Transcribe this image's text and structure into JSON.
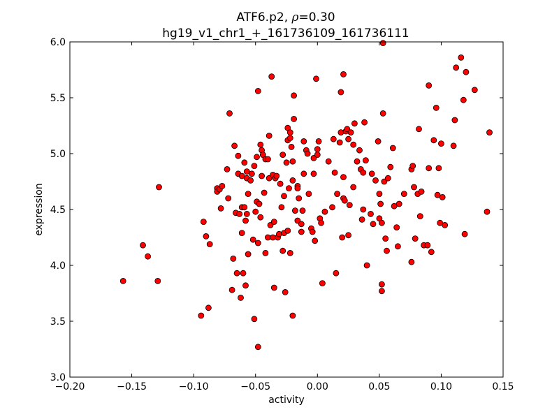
{
  "chart_data": {
    "type": "scatter",
    "title": {
      "line1_gene": "ATF6.p2,",
      "line1_rho_symbol": "ρ",
      "line1_rho_value": "=0.30",
      "line2": "hg19_v1_chr1_+_161736109_161736111"
    },
    "xlabel": "activity",
    "ylabel": "expression",
    "xlim": [
      -0.2,
      0.15
    ],
    "ylim": [
      3.0,
      6.0
    ],
    "xticks": [
      -0.2,
      -0.15,
      -0.1,
      -0.05,
      0.0,
      0.05,
      0.1,
      0.15
    ],
    "xtick_labels": [
      "−0.20",
      "−0.15",
      "−0.10",
      "−0.05",
      "0.00",
      "0.05",
      "0.10",
      "0.15"
    ],
    "yticks": [
      3.0,
      3.5,
      4.0,
      4.5,
      5.0,
      5.5,
      6.0
    ],
    "ytick_labels": [
      "3.0",
      "3.5",
      "4.0",
      "4.5",
      "5.0",
      "5.5",
      "6.0"
    ],
    "grid": false,
    "marker_color": "#ff0000",
    "marker_edge": "#000000",
    "points": [
      [
        -0.157,
        3.86
      ],
      [
        -0.141,
        4.18
      ],
      [
        -0.137,
        4.08
      ],
      [
        -0.129,
        3.86
      ],
      [
        -0.128,
        4.7
      ],
      [
        -0.094,
        3.55
      ],
      [
        -0.092,
        4.39
      ],
      [
        -0.09,
        4.26
      ],
      [
        -0.088,
        3.62
      ],
      [
        -0.087,
        4.19
      ],
      [
        -0.081,
        4.69
      ],
      [
        -0.081,
        4.66
      ],
      [
        -0.079,
        4.68
      ],
      [
        -0.078,
        4.51
      ],
      [
        -0.077,
        4.71
      ],
      [
        -0.073,
        4.86
      ],
      [
        -0.072,
        4.6
      ],
      [
        -0.071,
        5.36
      ],
      [
        -0.069,
        3.78
      ],
      [
        -0.068,
        4.06
      ],
      [
        -0.067,
        5.07
      ],
      [
        -0.066,
        4.47
      ],
      [
        -0.065,
        3.93
      ],
      [
        -0.064,
        4.82
      ],
      [
        -0.064,
        4.98
      ],
      [
        -0.063,
        4.46
      ],
      [
        -0.062,
        3.71
      ],
      [
        -0.061,
        4.52
      ],
      [
        -0.061,
        4.8
      ],
      [
        -0.061,
        4.29
      ],
      [
        -0.06,
        3.93
      ],
      [
        -0.059,
        4.52
      ],
      [
        -0.059,
        4.92
      ],
      [
        -0.058,
        3.82
      ],
      [
        -0.058,
        4.4
      ],
      [
        -0.057,
        4.46
      ],
      [
        -0.057,
        4.78
      ],
      [
        -0.057,
        4.84
      ],
      [
        -0.056,
        4.64
      ],
      [
        -0.056,
        4.1
      ],
      [
        -0.054,
        4.76
      ],
      [
        -0.053,
        4.82
      ],
      [
        -0.052,
        4.23
      ],
      [
        -0.051,
        3.52
      ],
      [
        -0.051,
        4.89
      ],
      [
        -0.05,
        4.48
      ],
      [
        -0.049,
        4.57
      ],
      [
        -0.049,
        4.97
      ],
      [
        -0.048,
        4.2
      ],
      [
        -0.048,
        3.27
      ],
      [
        -0.048,
        5.56
      ],
      [
        -0.047,
        4.55
      ],
      [
        -0.046,
        4.43
      ],
      [
        -0.046,
        5.08
      ],
      [
        -0.045,
        4.8
      ],
      [
        -0.045,
        5.03
      ],
      [
        -0.044,
        4.99
      ],
      [
        -0.043,
        4.65
      ],
      [
        -0.042,
        4.11
      ],
      [
        -0.042,
        4.95
      ],
      [
        -0.04,
        4.25
      ],
      [
        -0.04,
        4.95
      ],
      [
        -0.039,
        4.78
      ],
      [
        -0.039,
        5.16
      ],
      [
        -0.038,
        4.36
      ],
      [
        -0.037,
        5.69
      ],
      [
        -0.036,
        4.25
      ],
      [
        -0.036,
        4.81
      ],
      [
        -0.035,
        3.8
      ],
      [
        -0.035,
        4.39
      ],
      [
        -0.034,
        4.78
      ],
      [
        -0.033,
        4.8
      ],
      [
        -0.032,
        4.25
      ],
      [
        -0.031,
        4.28
      ],
      [
        -0.03,
        4.73
      ],
      [
        -0.029,
        4.52
      ],
      [
        -0.028,
        4.13
      ],
      [
        -0.028,
        4.99
      ],
      [
        -0.027,
        4.29
      ],
      [
        -0.027,
        4.62
      ],
      [
        -0.026,
        3.76
      ],
      [
        -0.025,
        4.92
      ],
      [
        -0.024,
        5.23
      ],
      [
        -0.024,
        5.12
      ],
      [
        -0.024,
        4.31
      ],
      [
        -0.023,
        4.69
      ],
      [
        -0.022,
        5.14
      ],
      [
        -0.022,
        4.11
      ],
      [
        -0.022,
        5.19
      ],
      [
        -0.021,
        5.06
      ],
      [
        -0.02,
        3.55
      ],
      [
        -0.02,
        4.76
      ],
      [
        -0.02,
        4.93
      ],
      [
        -0.019,
        5.31
      ],
      [
        -0.019,
        5.52
      ],
      [
        -0.018,
        4.49
      ],
      [
        -0.016,
        4.71
      ],
      [
        -0.016,
        4.69
      ],
      [
        -0.016,
        4.4
      ],
      [
        -0.015,
        4.6
      ],
      [
        -0.013,
        4.37
      ],
      [
        -0.013,
        4.3
      ],
      [
        -0.012,
        4.49
      ],
      [
        -0.011,
        4.82
      ],
      [
        -0.011,
        5.11
      ],
      [
        -0.009,
        5.03
      ],
      [
        -0.008,
        5.0
      ],
      [
        -0.007,
        4.64
      ],
      [
        -0.005,
        4.33
      ],
      [
        -0.004,
        4.3
      ],
      [
        -0.003,
        4.82
      ],
      [
        -0.003,
        4.96
      ],
      [
        -0.002,
        4.22
      ],
      [
        -0.001,
        5.67
      ],
      [
        0.0,
        5.04
      ],
      [
        0.0,
        4.99
      ],
      [
        0.001,
        5.11
      ],
      [
        0.002,
        4.42
      ],
      [
        0.003,
        4.38
      ],
      [
        0.004,
        3.84
      ],
      [
        0.006,
        4.48
      ],
      [
        0.009,
        4.93
      ],
      [
        0.012,
        4.52
      ],
      [
        0.013,
        5.13
      ],
      [
        0.014,
        4.83
      ],
      [
        0.015,
        3.93
      ],
      [
        0.016,
        4.64
      ],
      [
        0.018,
        5.1
      ],
      [
        0.019,
        5.19
      ],
      [
        0.019,
        5.55
      ],
      [
        0.02,
        4.25
      ],
      [
        0.021,
        4.6
      ],
      [
        0.021,
        5.71
      ],
      [
        0.021,
        4.79
      ],
      [
        0.022,
        4.58
      ],
      [
        0.023,
        5.2
      ],
      [
        0.024,
        5.22
      ],
      [
        0.025,
        5.13
      ],
      [
        0.025,
        4.27
      ],
      [
        0.026,
        4.54
      ],
      [
        0.027,
        5.19
      ],
      [
        0.029,
        4.7
      ],
      [
        0.029,
        5.08
      ],
      [
        0.03,
        5.27
      ],
      [
        0.032,
        4.93
      ],
      [
        0.034,
        5.03
      ],
      [
        0.035,
        4.86
      ],
      [
        0.036,
        4.41
      ],
      [
        0.037,
        4.5
      ],
      [
        0.037,
        4.83
      ],
      [
        0.038,
        5.28
      ],
      [
        0.039,
        4.94
      ],
      [
        0.04,
        4.0
      ],
      [
        0.043,
        4.46
      ],
      [
        0.044,
        4.82
      ],
      [
        0.045,
        4.37
      ],
      [
        0.047,
        4.76
      ],
      [
        0.049,
        5.11
      ],
      [
        0.05,
        4.64
      ],
      [
        0.05,
        4.42
      ],
      [
        0.051,
        4.55
      ],
      [
        0.052,
        3.77
      ],
      [
        0.052,
        3.83
      ],
      [
        0.052,
        4.38
      ],
      [
        0.053,
        5.36
      ],
      [
        0.053,
        5.99
      ],
      [
        0.054,
        4.75
      ],
      [
        0.055,
        4.24
      ],
      [
        0.056,
        4.13
      ],
      [
        0.057,
        4.78
      ],
      [
        0.059,
        4.88
      ],
      [
        0.061,
        5.05
      ],
      [
        0.062,
        4.53
      ],
      [
        0.064,
        4.34
      ],
      [
        0.065,
        4.17
      ],
      [
        0.066,
        4.55
      ],
      [
        0.07,
        4.64
      ],
      [
        0.076,
        4.03
      ],
      [
        0.076,
        4.86
      ],
      [
        0.077,
        4.89
      ],
      [
        0.078,
        4.7
      ],
      [
        0.079,
        4.24
      ],
      [
        0.081,
        4.64
      ],
      [
        0.082,
        5.22
      ],
      [
        0.083,
        4.44
      ],
      [
        0.084,
        4.66
      ],
      [
        0.086,
        4.18
      ],
      [
        0.089,
        4.18
      ],
      [
        0.09,
        5.61
      ],
      [
        0.09,
        4.87
      ],
      [
        0.092,
        4.12
      ],
      [
        0.094,
        5.12
      ],
      [
        0.096,
        5.41
      ],
      [
        0.097,
        4.63
      ],
      [
        0.098,
        4.87
      ],
      [
        0.099,
        4.38
      ],
      [
        0.1,
        5.09
      ],
      [
        0.101,
        4.61
      ],
      [
        0.103,
        4.36
      ],
      [
        0.11,
        5.07
      ],
      [
        0.111,
        5.3
      ],
      [
        0.112,
        5.77
      ],
      [
        0.116,
        5.86
      ],
      [
        0.118,
        5.48
      ],
      [
        0.119,
        4.28
      ],
      [
        0.12,
        5.73
      ],
      [
        0.127,
        5.57
      ],
      [
        0.137,
        4.48
      ],
      [
        0.139,
        5.19
      ]
    ]
  }
}
